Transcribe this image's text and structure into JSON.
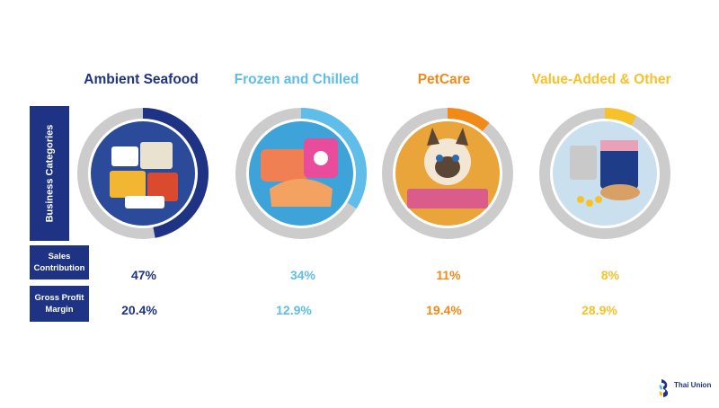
{
  "side_labels": {
    "business_categories": "Business Categories",
    "sales_contribution": "Sales Contribution",
    "gross_profit_margin": "Gross Profit Margin"
  },
  "brand": {
    "logo_text": "Thai Union"
  },
  "colors": {
    "navy": "#1f3384",
    "light_blue": "#5fbde9",
    "orange": "#f28a18",
    "yellow": "#f7c12a",
    "ring_grey": "#cccccc"
  },
  "chart_data": {
    "type": "pie",
    "categories": [
      "Ambient Seafood",
      "Frozen and Chilled",
      "PetCare",
      "Value-Added & Other"
    ],
    "series": [
      {
        "name": "Sales Contribution",
        "values": [
          47,
          34,
          11,
          8
        ],
        "labels": [
          "47%",
          "34%",
          "11%",
          "8%"
        ]
      },
      {
        "name": "Gross Profit Margin",
        "values": [
          20.4,
          12.9,
          19.4,
          28.9
        ],
        "labels": [
          "20.4%",
          "12.9%",
          "19.4%",
          "28.9%"
        ]
      }
    ],
    "colors": [
      "#1f3384",
      "#5fbde9",
      "#f28a18",
      "#f7c12a"
    ],
    "photo_icons": [
      "seafood-cans-icon",
      "salmon-fillet-icon",
      "cat-icon",
      "supplement-can-icon"
    ]
  }
}
